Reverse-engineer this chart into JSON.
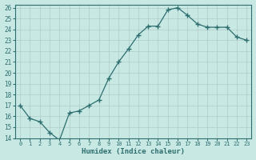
{
  "x": [
    0,
    1,
    2,
    3,
    4,
    5,
    6,
    7,
    8,
    9,
    10,
    11,
    12,
    13,
    14,
    15,
    16,
    17,
    18,
    19,
    20,
    21,
    22,
    23
  ],
  "y": [
    17.0,
    15.8,
    15.5,
    14.5,
    13.8,
    16.3,
    16.5,
    17.0,
    17.5,
    19.5,
    21.0,
    22.2,
    23.5,
    24.3,
    24.3,
    25.8,
    26.0,
    25.3,
    24.5,
    24.2,
    24.2,
    24.2,
    23.3,
    23.0
  ],
  "xlabel": "Humidex (Indice chaleur)",
  "ylim_min": 14,
  "ylim_max": 26,
  "xlim_min": 0,
  "xlim_max": 23,
  "bg_color": "#c8e8e4",
  "grid_color": "#b0ccc8",
  "line_color": "#2d6e6e",
  "marker_color": "#2d6e6e",
  "spine_color": "#2d6e6e",
  "tick_color": "#2d6e6e",
  "label_color": "#2d6e6e"
}
